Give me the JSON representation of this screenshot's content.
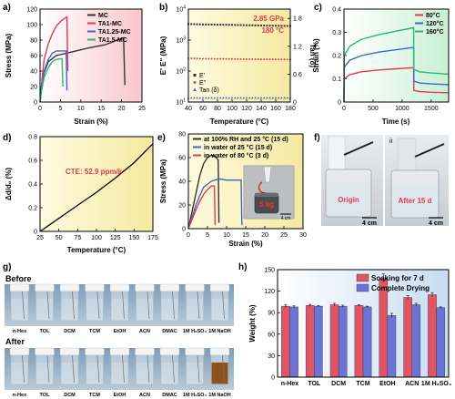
{
  "panels": {
    "a": {
      "label": "a)",
      "chart_data": {
        "type": "line",
        "xlabel": "Strain (%)",
        "ylabel": "Stress (MPa)",
        "xlim": [
          0,
          25
        ],
        "ylim": [
          0,
          120
        ],
        "xticks": [
          0,
          5,
          10,
          15,
          20,
          25
        ],
        "yticks": [
          0,
          20,
          40,
          60,
          80,
          100,
          120
        ],
        "legend_position": "top-right",
        "series": [
          {
            "name": "MC",
            "color": "#333333",
            "x": [
              0,
              0.5,
              1,
              2,
              4,
              8,
              12,
              16,
              19,
              20.5,
              20.8
            ],
            "y": [
              0,
              22,
              38,
              52,
              60,
              65,
              70,
              74,
              80,
              83,
              22
            ]
          },
          {
            "name": "TA1-MC",
            "color": "#e8384f",
            "x": [
              0,
              0.5,
              1,
              2,
              3,
              4,
              5,
              6,
              6.6,
              6.8
            ],
            "y": [
              0,
              30,
              55,
              75,
              88,
              98,
              104,
              108,
              110,
              40
            ]
          },
          {
            "name": "TA1.25-MC",
            "color": "#3b67c7",
            "x": [
              0,
              0.5,
              1,
              2,
              3,
              4,
              5,
              6,
              6.4,
              6.6
            ],
            "y": [
              0,
              22,
              40,
              55,
              63,
              66,
              66,
              66,
              66,
              15
            ]
          },
          {
            "name": "TA1.5-MC",
            "color": "#2bb673",
            "x": [
              0,
              0.5,
              1,
              2,
              3,
              4,
              5,
              5.4,
              5.6
            ],
            "y": [
              0,
              18,
              32,
              44,
              52,
              55,
              56,
              56,
              20
            ]
          }
        ]
      }
    },
    "b": {
      "label": "b)",
      "chart_data": {
        "type": "line",
        "xlabel": "Temperature (°C)",
        "ylabel": "E' E\" (MPa)",
        "ylabel_right": "Tan (δ)",
        "xlim": [
          40,
          180
        ],
        "ylim_log": [
          1,
          4
        ],
        "ylim_right": [
          0,
          2.0
        ],
        "xticks": [
          40,
          60,
          80,
          100,
          120,
          140,
          160,
          180
        ],
        "yticks_log": [
          1,
          2,
          3,
          4
        ],
        "yticks_right": [
          0,
          0.6,
          1.2,
          1.8
        ],
        "legend_position": "bottom-left",
        "annotations": [
          "2.85 GPa",
          "180 °C"
        ],
        "series": [
          {
            "name": "E'",
            "color": "#333333",
            "marker": "square",
            "x": [
              40,
              60,
              80,
              100,
              120,
              140,
              160,
              180
            ],
            "y": [
              3300,
              3200,
              3150,
              3100,
              3020,
              2960,
              2900,
              2850
            ]
          },
          {
            "name": "E\"",
            "color": "#e8384f",
            "marker": "circle",
            "x": [
              40,
              60,
              80,
              100,
              120,
              140,
              160,
              180
            ],
            "y": [
              260,
              250,
              248,
              245,
              242,
              240,
              238,
              235
            ]
          },
          {
            "name": "Tan (δ)",
            "color": "#3b67c7",
            "marker": "triangle",
            "axis": "right",
            "x": [
              40,
              60,
              80,
              100,
              120,
              140,
              160,
              180
            ],
            "y": [
              0.09,
              0.09,
              0.09,
              0.09,
              0.09,
              0.09,
              0.09,
              0.09
            ]
          }
        ]
      }
    },
    "c": {
      "label": "c)",
      "chart_data": {
        "type": "line",
        "xlabel": "Time (s)",
        "ylabel": "Strain (%)",
        "xlim": [
          0,
          1800
        ],
        "ylim": [
          0,
          0.4
        ],
        "xticks": [
          0,
          500,
          1000,
          1500
        ],
        "yticks": [
          0,
          0.1,
          0.2,
          0.3,
          0.4
        ],
        "legend_position": "top-right",
        "series": [
          {
            "name": "80°C",
            "color": "#e8384f",
            "x": [
              0,
              5,
              100,
              300,
              600,
              900,
              1199,
              1201,
              1300,
              1500,
              1800
            ],
            "y": [
              0,
              0.1,
              0.118,
              0.13,
              0.138,
              0.143,
              0.148,
              0.05,
              0.045,
              0.042,
              0.04
            ]
          },
          {
            "name": "120°C",
            "color": "#3b67c7",
            "x": [
              0,
              5,
              100,
              300,
              600,
              900,
              1199,
              1201,
              1300,
              1500,
              1800
            ],
            "y": [
              0,
              0.15,
              0.18,
              0.2,
              0.215,
              0.225,
              0.235,
              0.09,
              0.082,
              0.078,
              0.075
            ]
          },
          {
            "name": "160°C",
            "color": "#2bb673",
            "x": [
              0,
              5,
              100,
              300,
              600,
              900,
              1199,
              1201,
              1300,
              1500,
              1800
            ],
            "y": [
              0,
              0.2,
              0.24,
              0.27,
              0.29,
              0.305,
              0.32,
              0.14,
              0.13,
              0.125,
              0.12
            ]
          }
        ]
      }
    },
    "d": {
      "label": "d)",
      "annotation": "CTE: 52.9 ppm/k",
      "chart_data": {
        "type": "line",
        "xlabel": "Temperature (°C)",
        "ylabel": "Δd/d₀ (%)",
        "xlim": [
          25,
          175
        ],
        "ylim": [
          0,
          0.8
        ],
        "xticks": [
          25,
          50,
          75,
          100,
          125,
          150,
          175
        ],
        "yticks": [
          0,
          0.2,
          0.4,
          0.6,
          0.8
        ],
        "series": [
          {
            "name": "",
            "color": "#000000",
            "x": [
              25,
              50,
              75,
              100,
              125,
              150,
              175
            ],
            "y": [
              0,
              0.11,
              0.22,
              0.33,
              0.45,
              0.58,
              0.74
            ]
          }
        ]
      }
    },
    "e": {
      "label": "e)",
      "weight_label": "5 kg",
      "scale_label": "4 cm",
      "chart_data": {
        "type": "line",
        "xlabel": "Strain (%)",
        "ylabel": "Stress (MPa)",
        "xlim": [
          0,
          30
        ],
        "ylim": [
          0,
          80
        ],
        "xticks": [
          0,
          5,
          10,
          15,
          20,
          25,
          30
        ],
        "yticks": [
          0,
          20,
          40,
          60,
          80
        ],
        "legend_position": "top-left",
        "series": [
          {
            "name": "at 100% RH and 25 °C (15 d)",
            "color": "#333333",
            "x": [
              0,
              1,
              2,
              3,
              4,
              5,
              6,
              7,
              7.8,
              8
            ],
            "y": [
              0,
              15,
              30,
              45,
              55,
              60,
              62,
              61,
              58,
              5
            ]
          },
          {
            "name": "in water of 25 °C (15 d)",
            "color": "#3b67c7",
            "x": [
              0,
              1,
              2,
              3,
              4,
              6,
              8,
              10,
              12,
              13.8,
              14
            ],
            "y": [
              0,
              10,
              20,
              28,
              35,
              40,
              42,
              41,
              41,
              41,
              3
            ]
          },
          {
            "name": "in water of 80 °C (3 d)",
            "color": "#e8384f",
            "x": [
              0,
              1,
              2,
              3,
              4,
              5,
              6,
              6.8,
              7
            ],
            "y": [
              0,
              8,
              16,
              23,
              29,
              33,
              36,
              36,
              3
            ]
          }
        ]
      }
    },
    "f": {
      "label": "f)",
      "roman": "ii",
      "caption_left": "Origin",
      "caption_right": "After 15 d",
      "scale_label": "4 cm"
    },
    "g": {
      "label": "g)",
      "before_label": "Before",
      "after_label": "After",
      "solvents": [
        "n-Hex",
        "TOL",
        "DCM",
        "TCM",
        "EtOH",
        "ACN",
        "DMAC",
        "1M H₂SO₄",
        "1M NaOH"
      ]
    },
    "h": {
      "label": "h)",
      "chart_data": {
        "type": "bar",
        "ylabel": "Weight (%)",
        "ylim": [
          0,
          150
        ],
        "yticks": [
          0,
          30,
          60,
          90,
          120,
          150
        ],
        "categories": [
          "n-Hex",
          "TOL",
          "DCM",
          "TCM",
          "EtOH",
          "ACN",
          "1M H₂SO₄"
        ],
        "legend_position": "top-right",
        "series": [
          {
            "name": "Soaking for 7 d",
            "color": "#e05565",
            "values": [
              99,
              100,
              101,
              100,
              138,
              111,
              115
            ],
            "errors": [
              2,
              1.5,
              2,
              1,
              6,
              3,
              3
            ]
          },
          {
            "name": "Complete Drying",
            "color": "#6b74d4",
            "values": [
              98,
              99,
              99,
              98,
              86,
              101,
              97
            ],
            "errors": [
              1.5,
              1,
              1.5,
              1,
              3,
              2,
              1
            ]
          }
        ]
      }
    }
  }
}
